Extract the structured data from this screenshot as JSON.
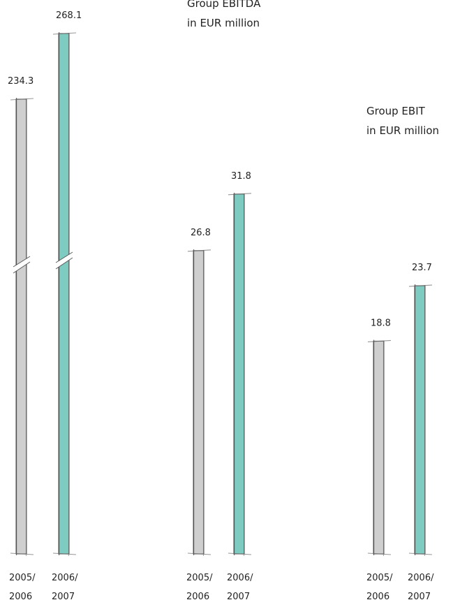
{
  "colors": {
    "prior_year": "#cfcfcf",
    "current_year": "#7ecbc2",
    "outline": "#6f6f6f"
  },
  "chart_data": [
    {
      "type": "bar",
      "title_lines": [],
      "categories": [
        [
          "2005/",
          "2006"
        ],
        [
          "2006/",
          "2007"
        ]
      ],
      "values": [
        234.3,
        268.1
      ],
      "value_labels": [
        "234.3",
        "268.1"
      ],
      "axis_break": true,
      "xlabel": "",
      "ylabel": ""
    },
    {
      "type": "bar",
      "title_lines": [
        "Group EBITDA",
        "in EUR million"
      ],
      "categories": [
        [
          "2005/",
          "2006"
        ],
        [
          "2006/",
          "2007"
        ]
      ],
      "values": [
        26.8,
        31.8
      ],
      "value_labels": [
        "26.8",
        "31.8"
      ],
      "axis_break": false,
      "xlabel": "",
      "ylabel": ""
    },
    {
      "type": "bar",
      "title_lines": [
        "Group EBIT",
        "in EUR million"
      ],
      "categories": [
        [
          "2005/",
          "2006"
        ],
        [
          "2006/",
          "2007"
        ]
      ],
      "values": [
        18.8,
        23.7
      ],
      "value_labels": [
        "18.8",
        "23.7"
      ],
      "axis_break": false,
      "xlabel": "",
      "ylabel": ""
    }
  ]
}
